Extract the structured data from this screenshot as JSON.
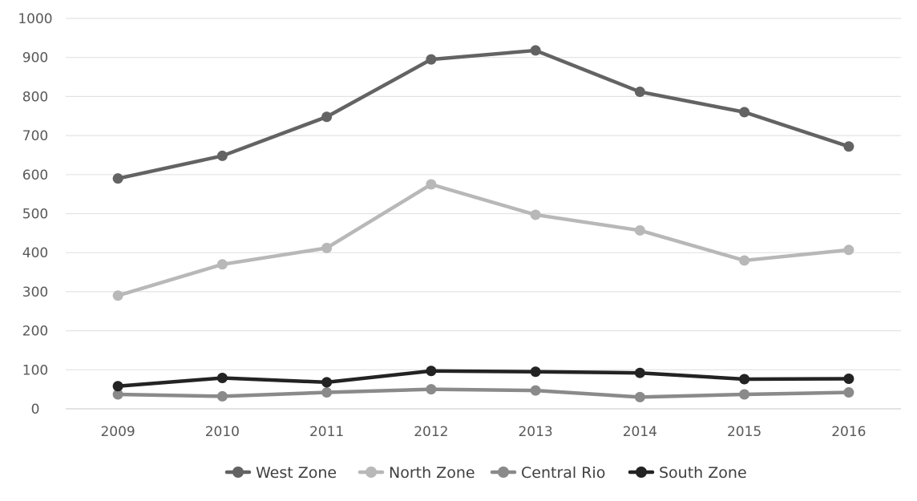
{
  "chart_data": {
    "type": "line",
    "title": "",
    "xlabel": "",
    "ylabel": "",
    "x": [
      "2009",
      "2010",
      "2011",
      "2012",
      "2013",
      "2014",
      "2015",
      "2016"
    ],
    "ylim": [
      0,
      1000
    ],
    "yticks": [
      0,
      100,
      200,
      300,
      400,
      500,
      600,
      700,
      800,
      900,
      1000
    ],
    "grid": true,
    "legend_position": "bottom",
    "series": [
      {
        "name": "West Zone",
        "color": "#636363",
        "values": [
          590,
          648,
          748,
          895,
          918,
          812,
          760,
          672
        ]
      },
      {
        "name": "North Zone",
        "color": "#b8b8b8",
        "values": [
          290,
          370,
          412,
          575,
          497,
          457,
          380,
          407
        ]
      },
      {
        "name": "Central Rio",
        "color": "#8a8a8a",
        "values": [
          37,
          32,
          42,
          50,
          47,
          30,
          37,
          42
        ]
      },
      {
        "name": "South Zone",
        "color": "#232323",
        "values": [
          58,
          79,
          68,
          97,
          95,
          92,
          76,
          77
        ]
      }
    ]
  }
}
